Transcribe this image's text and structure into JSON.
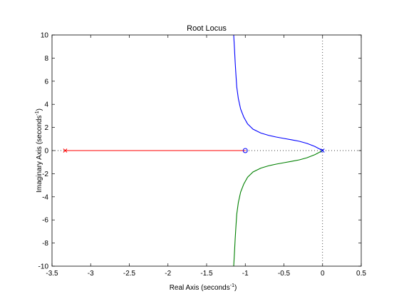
{
  "chart_data": {
    "type": "line",
    "title": "Root Locus",
    "xlabel": "Real Axis (seconds",
    "ylabel": "Imaginary Axis (seconds",
    "unit_superscript": "-1",
    "unit_close": ")",
    "xlim": [
      -3.5,
      0.5
    ],
    "ylim": [
      -10,
      10
    ],
    "x_ticks": [
      -3.5,
      -3,
      -2.5,
      -2,
      -1.5,
      -1,
      -0.5,
      0,
      0.5
    ],
    "x_tick_labels": [
      "-3.5",
      "-3",
      "-2.5",
      "-2",
      "-1.5",
      "-1",
      "-0.5",
      "0",
      "0.5"
    ],
    "y_ticks": [
      -10,
      -8,
      -6,
      -4,
      -2,
      0,
      2,
      4,
      6,
      8,
      10
    ],
    "y_tick_labels": [
      "-10",
      "-8",
      "-6",
      "-4",
      "-2",
      "0",
      "2",
      "4",
      "6",
      "8",
      "10"
    ],
    "grid": false,
    "reference_lines": {
      "real_axis_y": 0,
      "imag_axis_x": 0,
      "style": "dotted"
    },
    "series": [
      {
        "color": "#0000ff",
        "x": [
          0,
          -0.1,
          -0.2,
          -0.3,
          -0.4,
          -0.5,
          -0.6,
          -0.7,
          -0.8,
          -0.9,
          -0.97,
          -1.02,
          -1.06,
          -1.09,
          -1.11,
          -1.12,
          -1.13,
          -1.14,
          -1.15
        ],
        "y": [
          0,
          0.35,
          0.62,
          0.8,
          0.93,
          1.05,
          1.17,
          1.32,
          1.52,
          1.85,
          2.3,
          2.9,
          3.6,
          4.5,
          5.5,
          6.5,
          7.6,
          8.8,
          10
        ]
      },
      {
        "color": "#008000",
        "x": [
          0,
          -0.1,
          -0.2,
          -0.3,
          -0.4,
          -0.5,
          -0.6,
          -0.7,
          -0.8,
          -0.9,
          -0.97,
          -1.02,
          -1.06,
          -1.09,
          -1.11,
          -1.12,
          -1.13,
          -1.14,
          -1.15
        ],
        "y": [
          0,
          -0.35,
          -0.62,
          -0.8,
          -0.93,
          -1.05,
          -1.17,
          -1.32,
          -1.52,
          -1.85,
          -2.3,
          -2.9,
          -3.6,
          -4.5,
          -5.5,
          -6.5,
          -7.6,
          -8.8,
          -10
        ]
      },
      {
        "color": "#ff0000",
        "x": [
          -3.33,
          -1.0
        ],
        "y": [
          0,
          0
        ]
      }
    ],
    "poles": [
      {
        "x": -3.33,
        "y": 0,
        "color": "#ff0000"
      },
      {
        "x": 0,
        "y": 0,
        "color": "#0000ff"
      }
    ],
    "zeros": [
      {
        "x": -1.0,
        "y": 0,
        "color": "#0000ff"
      }
    ]
  }
}
